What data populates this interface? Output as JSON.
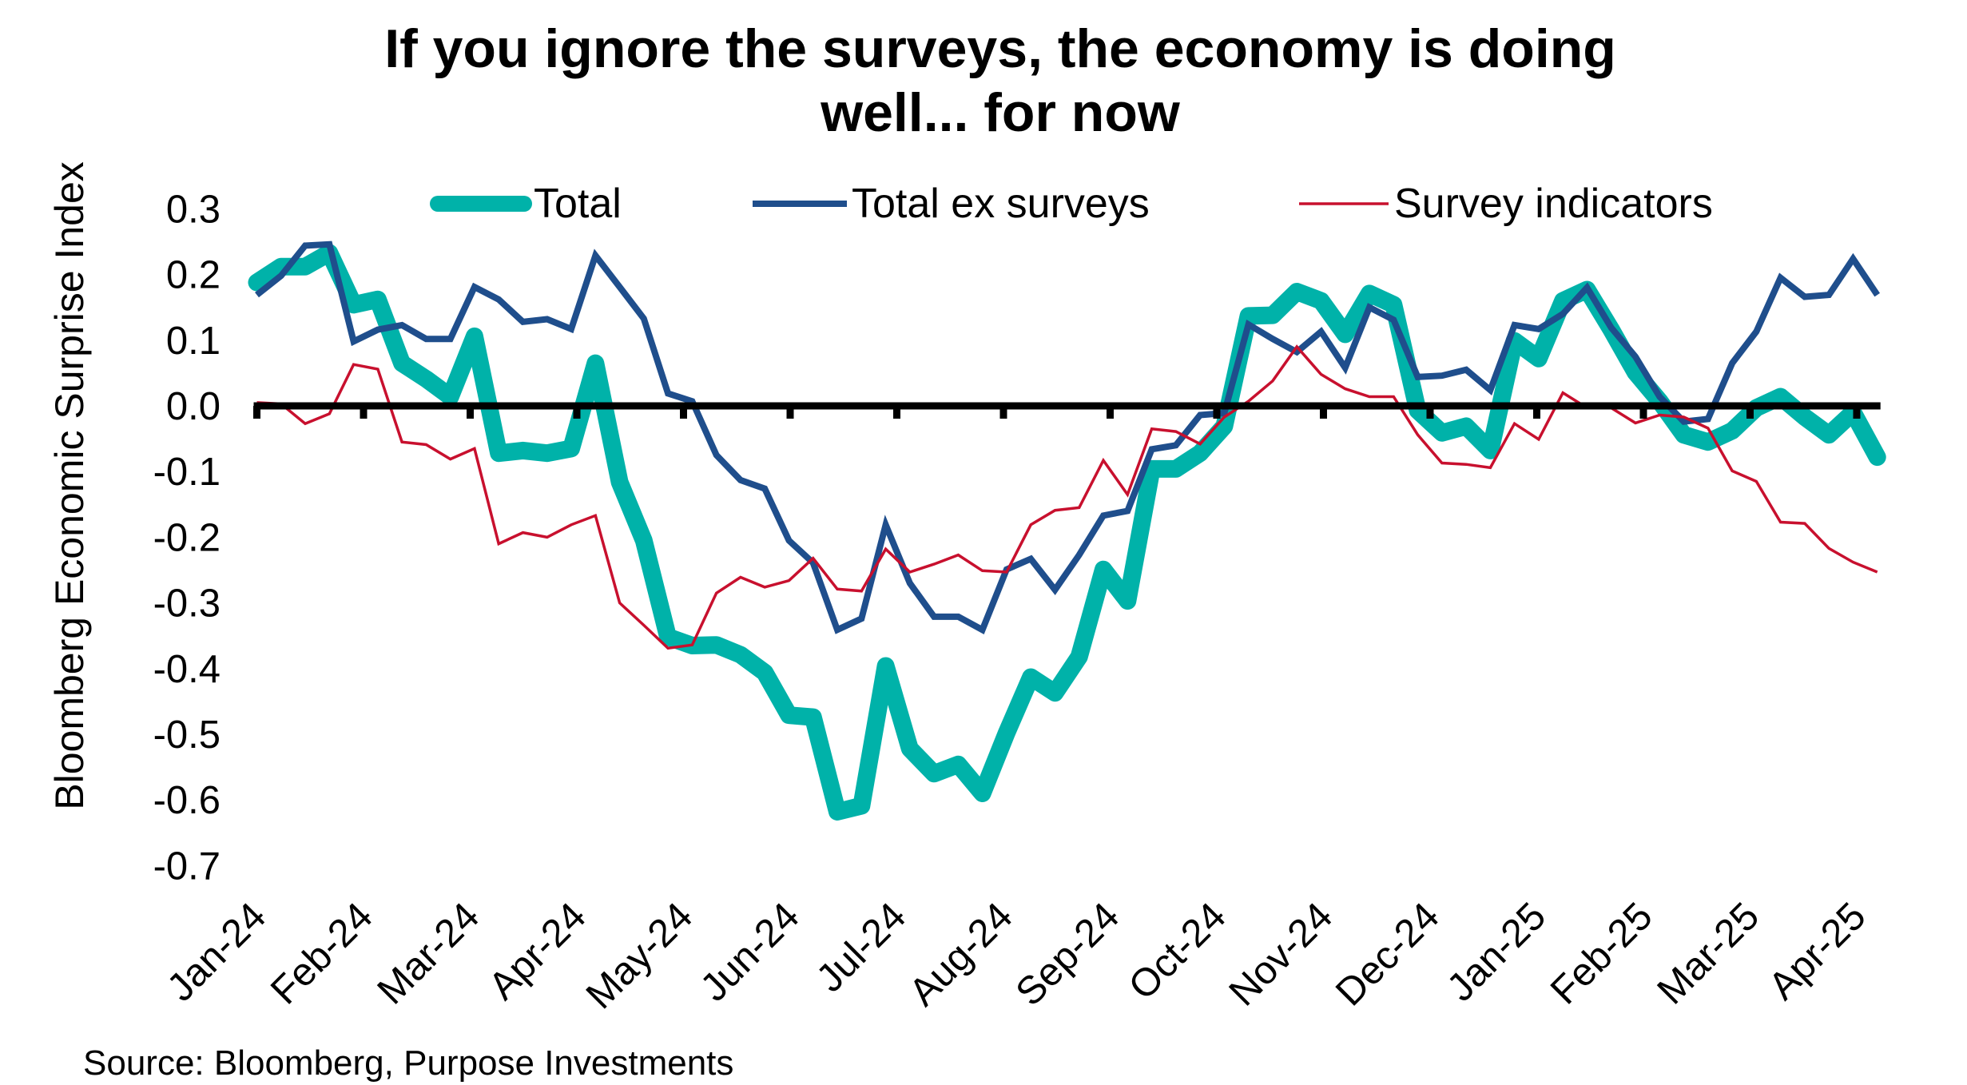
{
  "chart_data": {
    "type": "line",
    "title_lines": [
      "If you ignore the surveys, the economy is doing",
      "well... for now"
    ],
    "ylabel": "Bloomberg Economic Surprise Index",
    "xlabel": "",
    "ylim": [
      -0.7,
      0.3
    ],
    "y_ticks": [
      "0.3",
      "0.2",
      "0.1",
      "0.0",
      "-0.1",
      "-0.2",
      "-0.3",
      "-0.4",
      "-0.5",
      "-0.6",
      "-0.7"
    ],
    "y_tick_values": [
      0.3,
      0.2,
      0.1,
      0.0,
      -0.1,
      -0.2,
      -0.3,
      -0.4,
      -0.5,
      -0.6,
      -0.7
    ],
    "x_ticks": [
      "Jan-24",
      "Feb-24",
      "Mar-24",
      "Apr-24",
      "May-24",
      "Jun-24",
      "Jul-24",
      "Aug-24",
      "Sep-24",
      "Oct-24",
      "Nov-24",
      "Dec-24",
      "Jan-25",
      "Feb-25",
      "Mar-25",
      "Apr-25"
    ],
    "frequency": "weekly",
    "grid": false,
    "legend_position": "top",
    "series": [
      {
        "name": "Total",
        "color": "#00B2A9",
        "values": [
          0.188,
          0.212,
          0.212,
          0.233,
          0.154,
          0.162,
          0.065,
          0.041,
          0.014,
          0.106,
          -0.072,
          -0.068,
          -0.072,
          -0.065,
          0.065,
          -0.116,
          -0.205,
          -0.352,
          -0.365,
          -0.364,
          -0.379,
          -0.406,
          -0.471,
          -0.474,
          -0.618,
          -0.609,
          -0.396,
          -0.522,
          -0.56,
          -0.546,
          -0.59,
          -0.498,
          -0.413,
          -0.437,
          -0.382,
          -0.249,
          -0.297,
          -0.096,
          -0.096,
          -0.072,
          -0.031,
          0.137,
          0.138,
          0.174,
          0.16,
          0.109,
          0.171,
          0.154,
          -0.007,
          -0.041,
          -0.031,
          -0.068,
          0.099,
          0.072,
          0.16,
          0.177,
          0.116,
          0.051,
          0.007,
          -0.044,
          -0.055,
          -0.038,
          -0.003,
          0.014,
          -0.017,
          -0.044,
          -0.01,
          -0.078
        ]
      },
      {
        "name": "Total ex surveys",
        "color": "#1F4E8C",
        "values": [
          0.169,
          0.198,
          0.244,
          0.246,
          0.098,
          0.116,
          0.123,
          0.102,
          0.102,
          0.181,
          0.162,
          0.128,
          0.132,
          0.117,
          0.229,
          0.181,
          0.133,
          0.019,
          0.007,
          -0.075,
          -0.113,
          -0.126,
          -0.205,
          -0.239,
          -0.341,
          -0.324,
          -0.181,
          -0.27,
          -0.321,
          -0.321,
          -0.341,
          -0.249,
          -0.233,
          -0.28,
          -0.227,
          -0.167,
          -0.16,
          -0.066,
          -0.06,
          -0.014,
          -0.011,
          0.124,
          0.102,
          0.082,
          0.113,
          0.058,
          0.15,
          0.131,
          0.044,
          0.046,
          0.055,
          0.024,
          0.123,
          0.117,
          0.14,
          0.18,
          0.119,
          0.075,
          0.014,
          -0.024,
          -0.02,
          0.065,
          0.113,
          0.195,
          0.166,
          0.169,
          0.224,
          0.169
        ]
      },
      {
        "name": "Survey indicators",
        "color": "#C8102E",
        "values": [
          0.005,
          0.003,
          -0.027,
          -0.012,
          0.063,
          0.056,
          -0.055,
          -0.059,
          -0.081,
          -0.065,
          -0.21,
          -0.193,
          -0.2,
          -0.181,
          -0.167,
          -0.3,
          -0.334,
          -0.369,
          -0.364,
          -0.285,
          -0.261,
          -0.276,
          -0.266,
          -0.232,
          -0.279,
          -0.282,
          -0.218,
          -0.253,
          -0.241,
          -0.227,
          -0.251,
          -0.253,
          -0.181,
          -0.159,
          -0.155,
          -0.083,
          -0.135,
          -0.035,
          -0.039,
          -0.058,
          -0.017,
          0.007,
          0.038,
          0.09,
          0.048,
          0.026,
          0.014,
          0.014,
          -0.044,
          -0.087,
          -0.089,
          -0.094,
          -0.027,
          -0.051,
          0.02,
          -0.003,
          -0.003,
          -0.026,
          -0.014,
          -0.017,
          -0.034,
          -0.099,
          -0.115,
          -0.177,
          -0.179,
          -0.217,
          -0.238,
          -0.253
        ]
      }
    ],
    "source": "Source: Bloomberg, Purpose Investments"
  }
}
